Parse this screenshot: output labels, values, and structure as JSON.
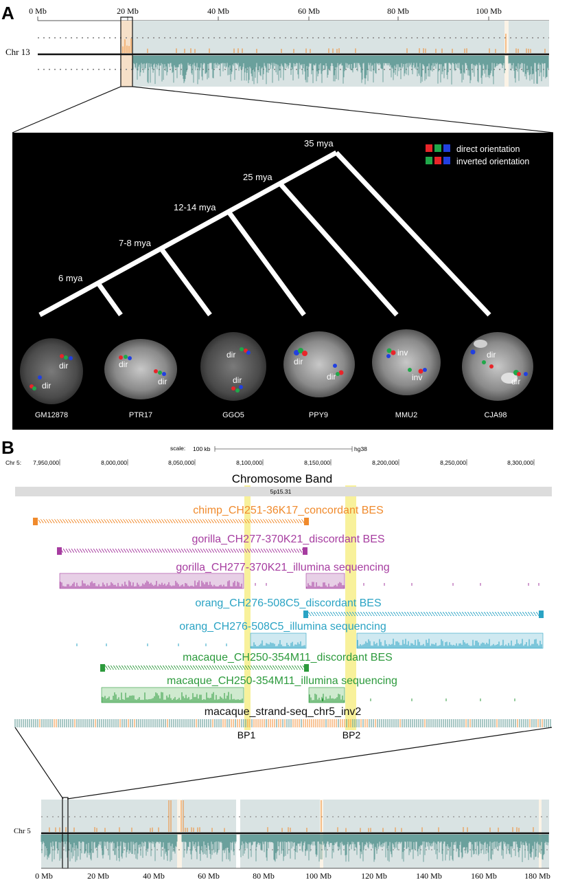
{
  "panel_a": {
    "label": "A",
    "axis_ticks": [
      "0 Mb",
      "20 Mb",
      "40 Mb",
      "60 Mb",
      "80 Mb",
      "100 Mb"
    ],
    "chr_label": "Chr 13",
    "tree": {
      "nodes": [
        "6 mya",
        "7-8 mya",
        "12-14 mya",
        "25 mya",
        "35 mya"
      ],
      "legend": [
        {
          "text": "direct orientation",
          "colors": [
            "#e8252a",
            "#20a84a",
            "#2140e0"
          ]
        },
        {
          "text": "inverted orientation",
          "colors": [
            "#20a84a",
            "#e8252a",
            "#2140e0"
          ]
        }
      ]
    },
    "cells": [
      {
        "name": "GM12878",
        "marks": [
          "dir",
          "dir"
        ]
      },
      {
        "name": "PTR17",
        "marks": [
          "dir",
          "dir"
        ]
      },
      {
        "name": "GGO5",
        "marks": [
          "dir",
          "dir"
        ]
      },
      {
        "name": "PPY9",
        "marks": [
          "dir",
          "dir"
        ]
      },
      {
        "name": "MMU2",
        "marks": [
          "inv",
          "inv"
        ]
      },
      {
        "name": "CJA98",
        "marks": [
          "dir",
          "dir"
        ]
      }
    ]
  },
  "panel_b": {
    "label": "B",
    "scale_label": "scale:",
    "scale_value": "100 kb",
    "assembly": "hg38",
    "chr_prefix": "Chr 5:",
    "ticks": [
      "7,950,000",
      "8,000,000",
      "8,050,000",
      "8,100,000",
      "8,150,000",
      "8,200,000",
      "8,250,000",
      "8,300,000"
    ],
    "band_title": "Chromosome Band",
    "band_name": "5p15.31",
    "tracks": [
      {
        "label": "chimp_CH251-36K17_concordant BES",
        "color": "#f08a2c"
      },
      {
        "label": "gorilla_CH277-370K21_discordant BES",
        "color": "#a63ca0"
      },
      {
        "label": "gorilla_CH277-370K21_illumina sequencing",
        "color": "#a63ca0"
      },
      {
        "label": "orang_CH276-508C5_discordant BES",
        "color": "#2aa3c4"
      },
      {
        "label": "orang_CH276-508C5_illumina sequencing",
        "color": "#2aa3c4"
      },
      {
        "label": "macaque_CH250-354M11_discordant BES",
        "color": "#2c9a3c"
      },
      {
        "label": "macaque_CH250-354M11_illumina sequencing",
        "color": "#2c9a3c"
      },
      {
        "label": "macaque_strand-seq_chr5_inv2",
        "color": "#111111"
      }
    ],
    "bp1": "BP1",
    "bp2": "BP2",
    "chr_label": "Chr 5",
    "axis_ticks": [
      "0 Mb",
      "20 Mb",
      "40 Mb",
      "60 Mb",
      "80 Mb",
      "100 Mb",
      "120 Mb",
      "140 Mb",
      "160 Mb",
      "180 Mb"
    ]
  }
}
